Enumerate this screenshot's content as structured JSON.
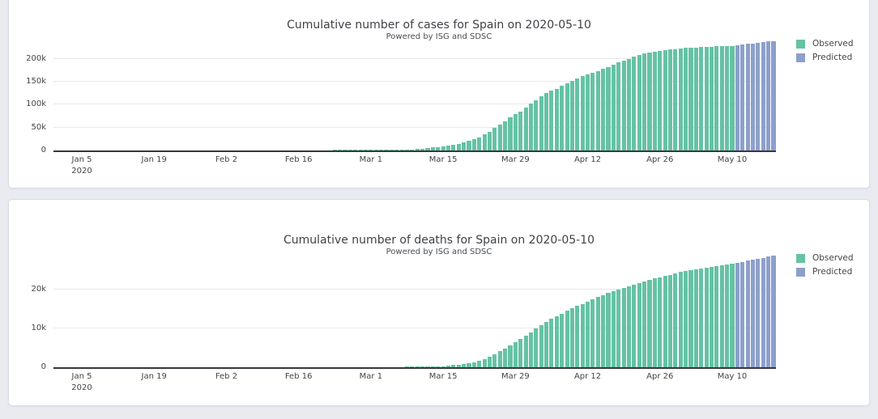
{
  "page": {
    "background_color": "#e9ebf1",
    "panel_border_color": "#d9dce4"
  },
  "colors": {
    "observed": "#66c2a5",
    "predicted": "#8da0cb",
    "axis_line": "#35373c",
    "grid_line": "#e8e8e8",
    "text": "#444444"
  },
  "chart_data": [
    {
      "type": "bar",
      "title": "Cumulative number of cases for Spain on 2020-05-10",
      "subtitle": "Powered by ISG and SDSC",
      "xlabel": "",
      "ylabel": "",
      "legend_position": "right",
      "grid": true,
      "x_start": "2020-01-05",
      "ylim": [
        0,
        242000
      ],
      "y_ticks": [
        {
          "label": "0",
          "value": 0
        },
        {
          "label": "50k",
          "value": 50000
        },
        {
          "label": "100k",
          "value": 100000
        },
        {
          "label": "150k",
          "value": 150000
        },
        {
          "label": "200k",
          "value": 200000
        }
      ],
      "x_ticks": [
        {
          "date": "2020-01-05",
          "label": "Jan 5",
          "sublabel": "2020"
        },
        {
          "date": "2020-01-19",
          "label": "Jan 19"
        },
        {
          "date": "2020-02-02",
          "label": "Feb 2"
        },
        {
          "date": "2020-02-16",
          "label": "Feb 16"
        },
        {
          "date": "2020-03-01",
          "label": "Mar 1"
        },
        {
          "date": "2020-03-15",
          "label": "Mar 15"
        },
        {
          "date": "2020-03-29",
          "label": "Mar 29"
        },
        {
          "date": "2020-04-12",
          "label": "Apr 12"
        },
        {
          "date": "2020-04-26",
          "label": "Apr 26"
        },
        {
          "date": "2020-05-10",
          "label": "May 10"
        }
      ],
      "legend": [
        {
          "label": "Observed",
          "color": "#66c2a5"
        },
        {
          "label": "Predicted",
          "color": "#8da0cb"
        }
      ],
      "series": [
        {
          "name": "Observed",
          "color": "#66c2a5",
          "start": "2020-02-23",
          "values": [
            10,
            20,
            30,
            50,
            100,
            150,
            200,
            300,
            400,
            500,
            700,
            900,
            1200,
            1500,
            2000,
            2500,
            3100,
            4000,
            5200,
            6300,
            7200,
            8000,
            10000,
            11800,
            13900,
            18000,
            20400,
            25400,
            28800,
            35100,
            39900,
            49500,
            56200,
            64100,
            72200,
            80100,
            85200,
            94400,
            102100,
            110200,
            117700,
            124700,
            130800,
            135000,
            140500,
            146700,
            152400,
            157000,
            161900,
            166000,
            169500,
            172500,
            177600,
            182800,
            188100,
            191700,
            195900,
            200200,
            204200,
            208400,
            211600,
            213500,
            216000,
            218000,
            219400,
            220600,
            221700,
            222700,
            223600,
            224400,
            225000,
            225600,
            226100,
            226600,
            227100,
            227500,
            227900,
            228200
          ]
        },
        {
          "name": "Predicted",
          "color": "#8da0cb",
          "start": "2020-05-11",
          "values": [
            229600,
            231000,
            232400,
            233800,
            235200,
            236500,
            237800,
            239000
          ]
        }
      ]
    },
    {
      "type": "bar",
      "title": "Cumulative number of deaths for Spain on 2020-05-10",
      "subtitle": "Powered by ISG and SDSC",
      "xlabel": "",
      "ylabel": "",
      "legend_position": "right",
      "grid": true,
      "x_start": "2020-01-05",
      "ylim": [
        0,
        29400
      ],
      "y_ticks": [
        {
          "label": "0",
          "value": 0
        },
        {
          "label": "10k",
          "value": 10000
        },
        {
          "label": "20k",
          "value": 20000
        }
      ],
      "x_ticks": [
        {
          "date": "2020-01-05",
          "label": "Jan 5",
          "sublabel": "2020"
        },
        {
          "date": "2020-01-19",
          "label": "Jan 19"
        },
        {
          "date": "2020-02-02",
          "label": "Feb 2"
        },
        {
          "date": "2020-02-16",
          "label": "Feb 16"
        },
        {
          "date": "2020-03-01",
          "label": "Mar 1"
        },
        {
          "date": "2020-03-15",
          "label": "Mar 15"
        },
        {
          "date": "2020-03-29",
          "label": "Mar 29"
        },
        {
          "date": "2020-04-12",
          "label": "Apr 12"
        },
        {
          "date": "2020-04-26",
          "label": "Apr 26"
        },
        {
          "date": "2020-05-10",
          "label": "May 10"
        }
      ],
      "legend": [
        {
          "label": "Observed",
          "color": "#66c2a5"
        },
        {
          "label": "Predicted",
          "color": "#8da0cb"
        }
      ],
      "series": [
        {
          "name": "Observed",
          "color": "#66c2a5",
          "start": "2020-03-08",
          "values": [
            20,
            30,
            50,
            70,
            90,
            130,
            200,
            290,
            340,
            530,
            600,
            770,
            1000,
            1350,
            1720,
            2180,
            2700,
            3430,
            4090,
            4860,
            5690,
            6530,
            7340,
            8190,
            9050,
            10000,
            10940,
            11740,
            12420,
            13060,
            13800,
            14560,
            15240,
            15840,
            16350,
            16970,
            17490,
            18060,
            18580,
            19130,
            19610,
            20040,
            20450,
            20850,
            21280,
            21720,
            22160,
            22520,
            22900,
            23190,
            23520,
            23820,
            24280,
            24540,
            24820,
            25100,
            25260,
            25430,
            25610,
            25860,
            26070,
            26300,
            26480,
            26620
          ]
        },
        {
          "name": "Predicted",
          "color": "#8da0cb",
          "start": "2020-05-11",
          "values": [
            26900,
            27180,
            27450,
            27720,
            27990,
            28250,
            28500,
            28740
          ]
        }
      ]
    }
  ]
}
